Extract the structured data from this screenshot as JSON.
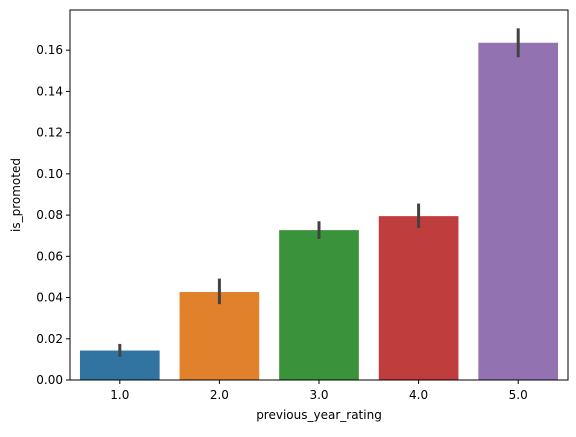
{
  "chart_data": {
    "type": "bar",
    "xlabel": "previous_year_rating",
    "ylabel": "is_promoted",
    "categories": [
      "1.0",
      "2.0",
      "3.0",
      "4.0",
      "5.0"
    ],
    "values": [
      0.0143,
      0.0427,
      0.0727,
      0.0795,
      0.1636
    ],
    "error_low": [
      0.0113,
      0.0368,
      0.0684,
      0.0737,
      0.1566
    ],
    "error_high": [
      0.0175,
      0.0492,
      0.077,
      0.0856,
      0.1706
    ],
    "colors": [
      "#3274a1",
      "#e1812c",
      "#3a923a",
      "#c03d3e",
      "#9372b2"
    ],
    "ylim": [
      0,
      0.1795
    ],
    "yticks": [
      "0.00",
      "0.02",
      "0.04",
      "0.06",
      "0.08",
      "0.10",
      "0.12",
      "0.14",
      "0.16"
    ],
    "grid": false,
    "legend": false
  }
}
